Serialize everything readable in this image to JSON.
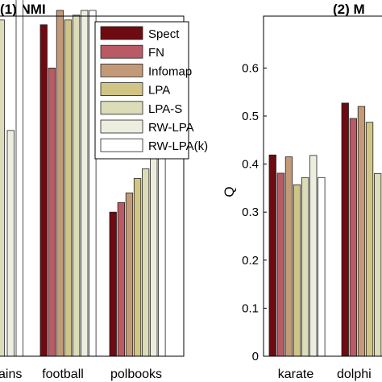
{
  "colors": {
    "Spect": "#6e0a12",
    "FN": "#b95a64",
    "Infomap": "#c39a78",
    "LPA": "#d0c585",
    "LPA-S": "#dcdcb8",
    "RW-LPA": "#eeeee0",
    "RW-LPA(k)": "#ffffff"
  },
  "chart_data": [
    {
      "type": "bar",
      "title": "(1) NMI",
      "categories": [
        "football",
        "polbooks"
      ],
      "visible_category_fragment": "ains",
      "series": [
        {
          "name": "Spect",
          "values": [
            0.69,
            0.3
          ]
        },
        {
          "name": "FN",
          "values": [
            0.6,
            0.32
          ]
        },
        {
          "name": "Infomap",
          "values": [
            0.72,
            0.34
          ]
        },
        {
          "name": "LPA",
          "values": [
            0.7,
            0.37
          ]
        },
        {
          "name": "LPA-S",
          "values": [
            0.71,
            0.39
          ]
        },
        {
          "name": "RW-LPA",
          "values": [
            0.72,
            0.42
          ]
        },
        {
          "name": "RW-LPA(k)",
          "values": [
            0.72,
            0.42
          ]
        }
      ],
      "partial_bars_left": [
        0.7,
        0.47,
        0.81
      ]
    },
    {
      "type": "bar",
      "title": "(2) M",
      "ylabel": "Q",
      "ylim": [
        0,
        0.65
      ],
      "yticks": [
        "0",
        "0.1",
        "0.2",
        "0.3",
        "0.4",
        "0.5",
        "0.6"
      ],
      "categories": [
        "karate",
        "dolphi"
      ],
      "series": [
        {
          "name": "Spect",
          "values": [
            0.419,
            0.527
          ]
        },
        {
          "name": "FN",
          "values": [
            0.381,
            0.495
          ]
        },
        {
          "name": "Infomap",
          "values": [
            0.415,
            0.52
          ]
        },
        {
          "name": "LPA",
          "values": [
            0.357,
            0.487
          ]
        },
        {
          "name": "LPA-S",
          "values": [
            0.372,
            0.38
          ]
        },
        {
          "name": "RW-LPA",
          "values": [
            0.418,
            null
          ]
        },
        {
          "name": "RW-LPA(k)",
          "values": [
            0.372,
            null
          ]
        }
      ]
    }
  ],
  "legend": [
    "Spect",
    "FN",
    "Infomap",
    "LPA",
    "LPA-S",
    "RW-LPA",
    "RW-LPA(k)"
  ]
}
